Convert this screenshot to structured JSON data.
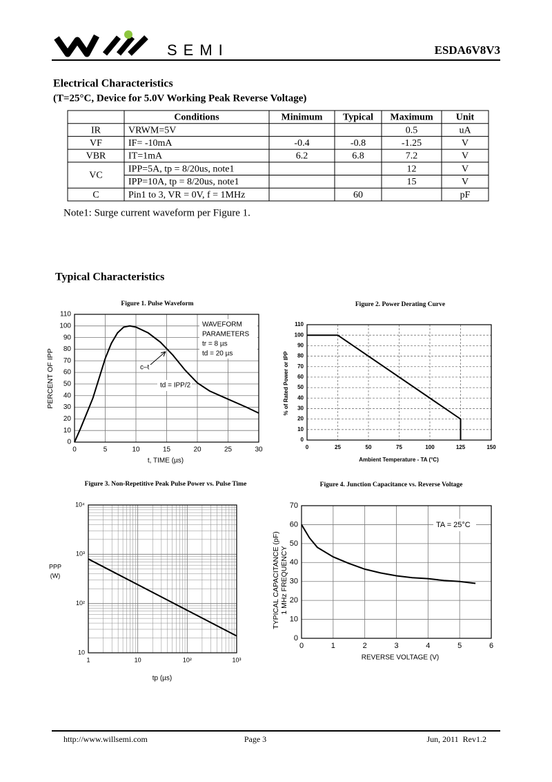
{
  "header": {
    "logo_text": "SEMI",
    "part_number": "ESDA6V8V3"
  },
  "section": {
    "title": "Electrical Characteristics",
    "subtitle": "(T=25°C, Device for 5.0V Working Peak Reverse Voltage)"
  },
  "table": {
    "columns": [
      "Conditions",
      "Minimum",
      "Typical",
      "Maximum",
      "Unit"
    ],
    "rows": [
      {
        "symbol": "IR",
        "conditions": "VRWM=5V",
        "min": null,
        "typ": null,
        "max": "0.5",
        "unit": "uA"
      },
      {
        "symbol": "VF",
        "conditions": "IF= -10mA",
        "min": "-0.4",
        "typ": "-0.8",
        "max": "-1.25",
        "unit": "V"
      },
      {
        "symbol": "VBR",
        "conditions": "IT=1mA",
        "min": "6.2",
        "typ": "6.8",
        "max": "7.2",
        "unit": "V"
      },
      {
        "symbol": "VC",
        "conditions": "IPP=5A, tp = 8/20us, note1",
        "min": null,
        "typ": null,
        "max": "12",
        "unit": "V"
      },
      {
        "symbol": null,
        "conditions": "IPP=10A, tp = 8/20us, note1",
        "min": null,
        "typ": null,
        "max": "15",
        "unit": "V"
      },
      {
        "symbol": "C",
        "conditions": "Pin1 to 3, VR = 0V, f = 1MHz",
        "min": null,
        "typ": "60",
        "max": null,
        "unit": "pF"
      }
    ]
  },
  "note": "Note1: Surge current waveform per Figure 1.",
  "typical_title": "Typical Characteristics",
  "chart_data": [
    {
      "type": "line",
      "title": "Figure 1. Pulse Waveform",
      "xlabel": "t, TIME (µs)",
      "ylabel": [
        "PERCENT OF IPP"
      ],
      "x": [
        0,
        1,
        2,
        3,
        4,
        5,
        6,
        7,
        8,
        9,
        10,
        12,
        14,
        16,
        18,
        20,
        22,
        25,
        28,
        30
      ],
      "values": [
        0,
        12,
        25,
        38,
        55,
        72,
        85,
        94,
        99,
        100,
        99,
        94,
        86,
        75,
        62,
        51,
        44,
        37,
        30,
        25
      ],
      "color": "#000000",
      "xlim": [
        0,
        30
      ],
      "xticks": [
        0,
        5,
        10,
        15,
        20,
        25,
        30
      ],
      "ylim": [
        0,
        110
      ],
      "yticks": [
        0,
        10,
        20,
        30,
        40,
        50,
        60,
        70,
        80,
        90,
        100,
        110
      ],
      "grid": true,
      "grid_style": "solid",
      "annotations": [
        "WAVEFORM",
        "PARAMETERS",
        "tr = 8 µs",
        "td = 20 µs",
        "c–t",
        "td = IPP/2"
      ]
    },
    {
      "type": "line",
      "title": "Figure 2. Power Derating Curve",
      "xlabel": "Ambient Temperature - TA (°C)",
      "ylabel": [
        "% of Rated Power or IPP"
      ],
      "x": [
        0,
        25,
        125,
        125
      ],
      "values": [
        100,
        100,
        20,
        0
      ],
      "color": "#000000",
      "xlim": [
        0,
        150
      ],
      "xticks": [
        0,
        25,
        50,
        75,
        100,
        125,
        150
      ],
      "ylim": [
        0,
        110
      ],
      "yticks": [
        0,
        10,
        20,
        30,
        40,
        50,
        60,
        70,
        80,
        90,
        100,
        110
      ],
      "grid": true,
      "grid_style": "dashed"
    },
    {
      "type": "line",
      "title": "Figure 3. Non-Repetitive Peak Pulse Power vs. Pulse Time",
      "xlabel": "tp (µs)",
      "ylabel": [
        "PPP",
        "(W)"
      ],
      "x": [
        1,
        1000
      ],
      "values": [
        800,
        22
      ],
      "color": "#000000",
      "log": true,
      "xlim": [
        1,
        1000
      ],
      "xticks": [
        1,
        10,
        {
          "value": 100,
          "label": "10²"
        },
        {
          "value": 1000,
          "label": "10³"
        }
      ],
      "ylim": [
        10,
        10000
      ],
      "yticks": [
        10,
        {
          "value": 100,
          "label": "10²"
        },
        {
          "value": 1000,
          "label": "10³"
        },
        {
          "value": 10000,
          "label": "10⁴"
        }
      ],
      "grid": true,
      "grid_style": "solid"
    },
    {
      "type": "line",
      "title": "Figure 4. Junction Capacitance vs. Reverse Voltage",
      "xlabel": "REVERSE VOLTAGE (V)",
      "ylabel": [
        "TYPICAL CAPACITANCE (pF)",
        "1 MHz FREQUENCY"
      ],
      "x": [
        0,
        0.25,
        0.5,
        1,
        1.5,
        2,
        2.5,
        3,
        3.5,
        4,
        4.5,
        5,
        5.5
      ],
      "values": [
        60,
        53,
        48,
        43,
        39.5,
        36.5,
        34.5,
        33,
        32,
        31.5,
        30.5,
        30,
        29
      ],
      "color": "#000000",
      "xlim": [
        0,
        6
      ],
      "xticks": [
        0,
        1,
        2,
        3,
        4,
        5,
        6
      ],
      "ylim": [
        0,
        70
      ],
      "yticks": [
        0,
        10,
        20,
        30,
        40,
        50,
        60,
        70
      ],
      "grid": true,
      "grid_style": "solid",
      "annotations": [
        "TA = 25°C"
      ]
    }
  ],
  "footer": {
    "url": "http://www.willsemi.com",
    "page": "Page 3",
    "date": "Jun, 2011  Rev1.2"
  }
}
